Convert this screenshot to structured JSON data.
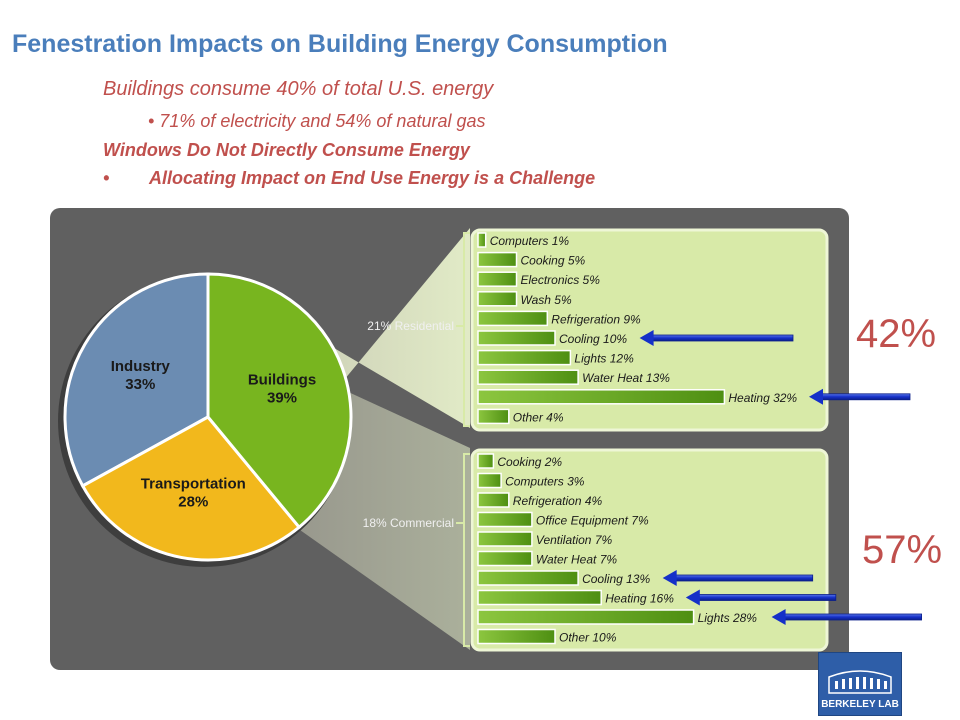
{
  "slide": {
    "title": "Fenestration Impacts on Building Energy Consumption",
    "subtitle_1": "Buildings consume 40% of total U.S. energy",
    "subtitle_2": "• 71% of electricity and 54% of natural gas",
    "subtitle_3": "Windows Do Not Directly Consume Energy",
    "subtitle_4_bullet": "•",
    "subtitle_4": "Allocating Impact on End Use Energy is a Challenge",
    "callout_residential": "42%",
    "callout_commercial": "57%",
    "logo_text": "BERKELEY LAB"
  },
  "colors": {
    "title": "#4a7ebb",
    "subtitle": "#c0504d",
    "panel_bg": "#606060",
    "breakdown_bg": "#d8eaa8",
    "bar_green": "#6aaa1e",
    "industry": "#6b8cb2",
    "transportation": "#f2b81c",
    "buildings": "#78b51f",
    "arrow": "#1530c8"
  },
  "chart_data": [
    {
      "type": "pie",
      "labels": [
        "Industry",
        "Transportation",
        "Buildings"
      ],
      "values": [
        33,
        28,
        39
      ],
      "slice_labels": [
        "Industry\n33%",
        "Transportation\n28%",
        "Buildings\n39%"
      ]
    },
    {
      "type": "bar",
      "group_label": "21% Residential",
      "categories": [
        "Computers",
        "Cooking",
        "Electronics",
        "Wash",
        "Refrigeration",
        "Cooling",
        "Lights",
        "Water Heat",
        "Heating",
        "Other"
      ],
      "values": [
        1,
        5,
        5,
        5,
        9,
        10,
        12,
        13,
        32,
        4
      ],
      "labels": [
        "Computers 1%",
        "Cooking 5%",
        "Electronics 5%",
        "Wash 5%",
        "Refrigeration 9%",
        "Cooling 10%",
        "Lights 12%",
        "Water Heat 13%",
        "Heating 32%",
        "Other 4%"
      ],
      "arrows_on": [
        "Cooling",
        "Heating"
      ]
    },
    {
      "type": "bar",
      "group_label": "18% Commercial",
      "categories": [
        "Cooking",
        "Computers",
        "Refrigeration",
        "Office Equipment",
        "Ventilation",
        "Water Heat",
        "Cooling",
        "Heating",
        "Lights",
        "Other"
      ],
      "values": [
        2,
        3,
        4,
        7,
        7,
        7,
        13,
        16,
        28,
        10
      ],
      "labels": [
        "Cooking 2%",
        "Computers 3%",
        "Refrigeration 4%",
        "Office Equipment 7%",
        "Ventilation 7%",
        "Water Heat 7%",
        "Cooling 13%",
        "Heating 16%",
        "Lights 28%",
        "Other 10%"
      ],
      "arrows_on": [
        "Cooling",
        "Heating",
        "Lights"
      ]
    }
  ]
}
